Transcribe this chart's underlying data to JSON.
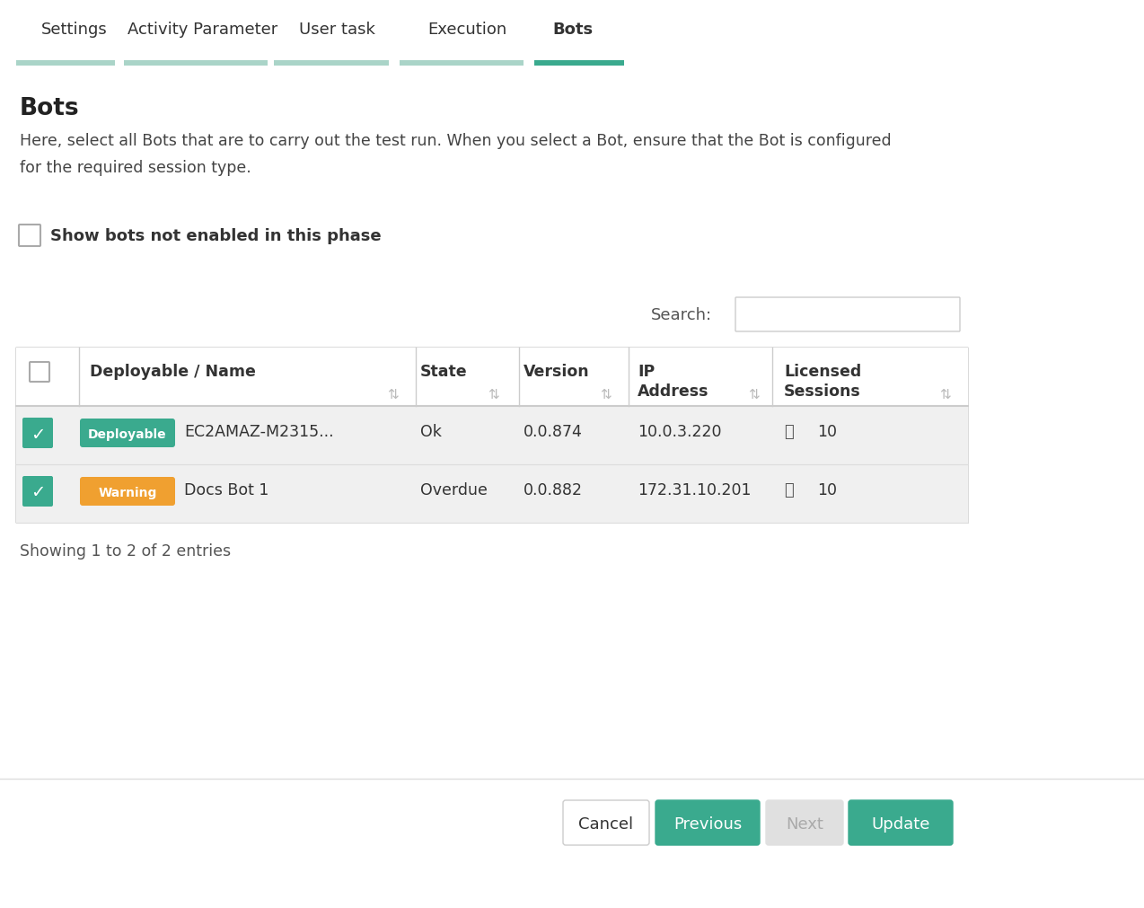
{
  "bg_color": "#ffffff",
  "tab_items": [
    "Settings",
    "Activity Parameter",
    "User task",
    "Execution",
    "Bots"
  ],
  "active_tab": "Bots",
  "tab_color_active": "#3aaa8e",
  "tab_color_inactive": "#cccccc",
  "section_title": "Bots",
  "description_line1": "Here, select all Bots that are to carry out the test run. When you select a Bot, ensure that the Bot is configured",
  "description_line2": "for the required session type.",
  "checkbox_label": "Show bots not enabled in this phase",
  "search_label": "Search:",
  "col_headers": [
    "Deployable / Name",
    "State",
    "Version",
    "IP\nAddress",
    "Licensed\nSessions"
  ],
  "sort_icon": "⇅",
  "rows": [
    {
      "checked": true,
      "badge_text": "Deployable",
      "badge_color": "#3aaa8e",
      "name": "EC2AMAZ-M2315...",
      "state": "Ok",
      "version": "0.0.874",
      "ip": "10.0.3.220",
      "licensed": "10",
      "row_bg": "#f0f0f0"
    },
    {
      "checked": true,
      "badge_text": "Warning",
      "badge_color": "#f0a030",
      "name": "Docs Bot 1",
      "state": "Overdue",
      "version": "0.0.882",
      "ip": "172.31.10.201",
      "licensed": "10",
      "row_bg": "#f0f0f0"
    }
  ],
  "footer_text": "Showing 1 to 2 of 2 entries",
  "btn_cancel": "Cancel",
  "btn_previous": "Previous",
  "btn_next": "Next",
  "btn_update": "Update",
  "btn_green": "#3aaa8e",
  "btn_next_color": "#e0e0e0",
  "btn_text_green": "#ffffff",
  "btn_text_cancel": "#333333",
  "btn_text_next": "#aaaaaa"
}
